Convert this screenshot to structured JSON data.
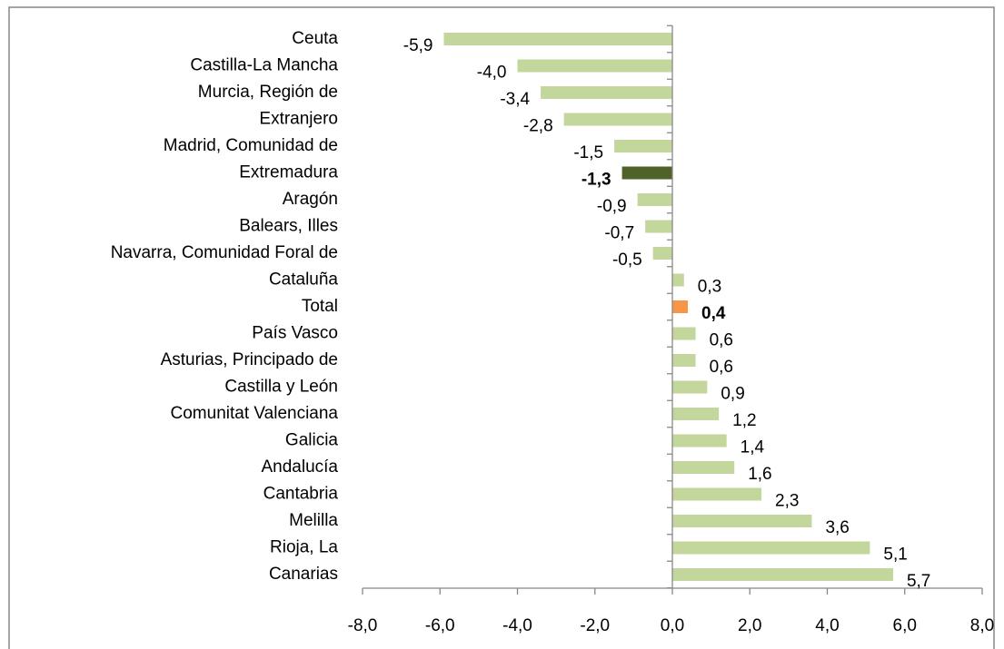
{
  "chart_data": {
    "type": "bar",
    "orientation": "horizontal",
    "categories": [
      "Ceuta",
      "Castilla-La Mancha",
      "Murcia, Región de",
      "Extranjero",
      "Madrid, Comunidad de",
      "Extremadura",
      "Aragón",
      "Balears, Illes",
      "Navarra, Comunidad  Foral de",
      "Cataluña",
      "Total",
      "País Vasco",
      "Asturias, Principado de",
      "Castilla y León",
      "Comunitat Valenciana",
      "Galicia",
      "Andalucía",
      "Cantabria",
      "Melilla",
      "Rioja, La",
      "Canarias"
    ],
    "values": [
      -5.9,
      -4.0,
      -3.4,
      -2.8,
      -1.5,
      -1.3,
      -0.9,
      -0.7,
      -0.5,
      0.3,
      0.4,
      0.6,
      0.6,
      0.9,
      1.2,
      1.4,
      1.6,
      2.3,
      3.6,
      5.1,
      5.7
    ],
    "value_labels": [
      "-5,9",
      "-4,0",
      "-3,4",
      "-2,8",
      "-1,5",
      "-1,3",
      "-0,9",
      "-0,7",
      "-0,5",
      "0,3",
      "0,4",
      "0,6",
      "0,6",
      "0,9",
      "1,2",
      "1,4",
      "1,6",
      "2,3",
      "3,6",
      "5,1",
      "5,7"
    ],
    "colors": [
      "#c3d69b",
      "#c3d69b",
      "#c3d69b",
      "#c3d69b",
      "#c3d69b",
      "#4f6228",
      "#c3d69b",
      "#c3d69b",
      "#c3d69b",
      "#c3d69b",
      "#f79646",
      "#c3d69b",
      "#c3d69b",
      "#c3d69b",
      "#c3d69b",
      "#c3d69b",
      "#c3d69b",
      "#c3d69b",
      "#c3d69b",
      "#c3d69b",
      "#c3d69b"
    ],
    "bold_value_labels": [
      false,
      false,
      false,
      false,
      false,
      true,
      false,
      false,
      false,
      false,
      true,
      false,
      false,
      false,
      false,
      false,
      false,
      false,
      false,
      false,
      false
    ],
    "xlim": [
      -8,
      8
    ],
    "xticks": [
      {
        "value": -8,
        "label": "-8,0"
      },
      {
        "value": -6,
        "label": "-6,0"
      },
      {
        "value": -4,
        "label": "-4,0"
      },
      {
        "value": -2,
        "label": "-2,0"
      },
      {
        "value": 0,
        "label": "0,0"
      },
      {
        "value": 2,
        "label": "2,0"
      },
      {
        "value": 4,
        "label": "4,0"
      },
      {
        "value": 6,
        "label": "6,0"
      },
      {
        "value": 8,
        "label": "8,0"
      }
    ],
    "grid": false
  }
}
